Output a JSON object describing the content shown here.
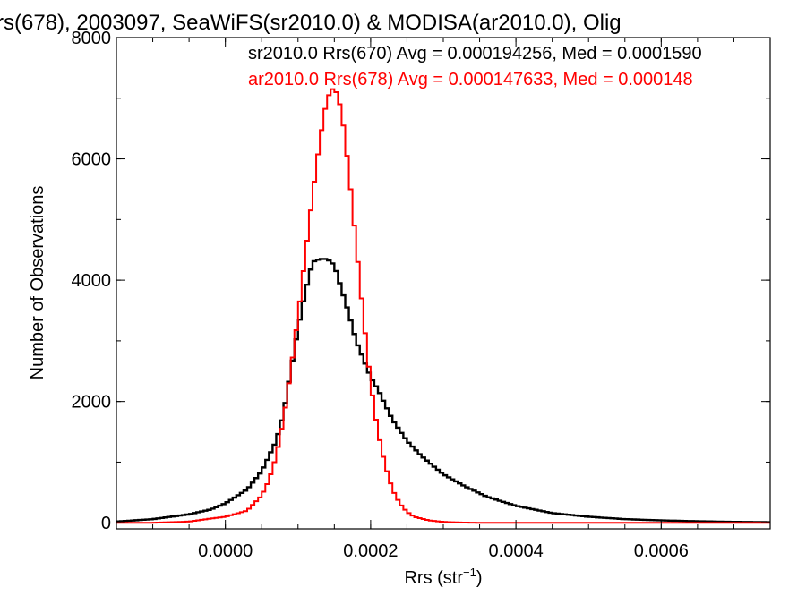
{
  "chart_data": {
    "type": "line",
    "title": "rs(678), 2003097, SeaWiFS(sr2010.0) & MODISA(ar2010.0), Olig",
    "xlabel": "Rrs (str",
    "xlabel_sup": "−1",
    "xlabel_end": ")",
    "ylabel": "Number of Observations",
    "xlim": [
      -0.00015,
      0.00075
    ],
    "ylim": [
      -100,
      8000
    ],
    "xticks": [
      0.0,
      0.0002,
      0.0004,
      0.0006
    ],
    "xtick_labels": [
      "0.0000",
      "0.0002",
      "0.0004",
      "0.0006"
    ],
    "yticks": [
      0,
      2000,
      4000,
      6000,
      8000
    ],
    "ytick_labels": [
      "0",
      "2000",
      "4000",
      "6000",
      "8000"
    ],
    "grid": false,
    "legend": [
      {
        "text": "sr2010.0 Rrs(670) Avg = 0.000194256, Med = 0.0001590",
        "color": "#000000"
      },
      {
        "text": "ar2010.0 Rrs(678) Avg = 0.000147633, Med = 0.000148",
        "color": "#ff0000"
      }
    ],
    "series": [
      {
        "color": "#000000",
        "x": [
          -0.00015,
          -0.0001,
          -5e-05,
          -2e-05,
          0.0,
          3e-05,
          5e-05,
          7e-05,
          8e-05,
          9e-05,
          0.0001,
          0.00011,
          0.00012,
          0.00013,
          0.00014,
          0.00015,
          0.00016,
          0.00017,
          0.00018,
          0.00019,
          0.0002,
          0.00021,
          0.00022,
          0.00023,
          0.00025,
          0.00027,
          0.0003,
          0.00033,
          0.00036,
          0.0004,
          0.00045,
          0.0005,
          0.00055,
          0.0006,
          0.00065,
          0.0007,
          0.00075
        ],
        "y": [
          20,
          60,
          140,
          220,
          320,
          550,
          850,
          1350,
          1800,
          2500,
          3200,
          3800,
          4300,
          4350,
          4350,
          4250,
          3850,
          3450,
          3000,
          2700,
          2400,
          2200,
          1950,
          1700,
          1350,
          1100,
          800,
          600,
          430,
          280,
          160,
          100,
          60,
          40,
          25,
          15,
          10
        ]
      },
      {
        "color": "#ff0000",
        "x": [
          -0.00015,
          -0.0001,
          -5e-05,
          -2e-05,
          0.0,
          3e-05,
          5e-05,
          6e-05,
          7e-05,
          8e-05,
          9e-05,
          0.0001,
          0.00011,
          0.00012,
          0.00013,
          0.00014,
          0.00015,
          0.00016,
          0.00017,
          0.00018,
          0.00019,
          0.0002,
          0.00021,
          0.00022,
          0.00023,
          0.00024,
          0.00025,
          0.00026,
          0.00028,
          0.0003,
          0.00032,
          0.00035,
          0.0004,
          0.0005,
          0.0006,
          0.00075
        ],
        "y": [
          0,
          0,
          20,
          70,
          100,
          200,
          450,
          700,
          1100,
          1700,
          2500,
          3400,
          4400,
          5400,
          6300,
          7000,
          7200,
          6800,
          5800,
          4600,
          3400,
          2300,
          1500,
          950,
          550,
          320,
          180,
          100,
          40,
          15,
          5,
          0,
          0,
          0,
          0,
          0
        ]
      }
    ]
  }
}
